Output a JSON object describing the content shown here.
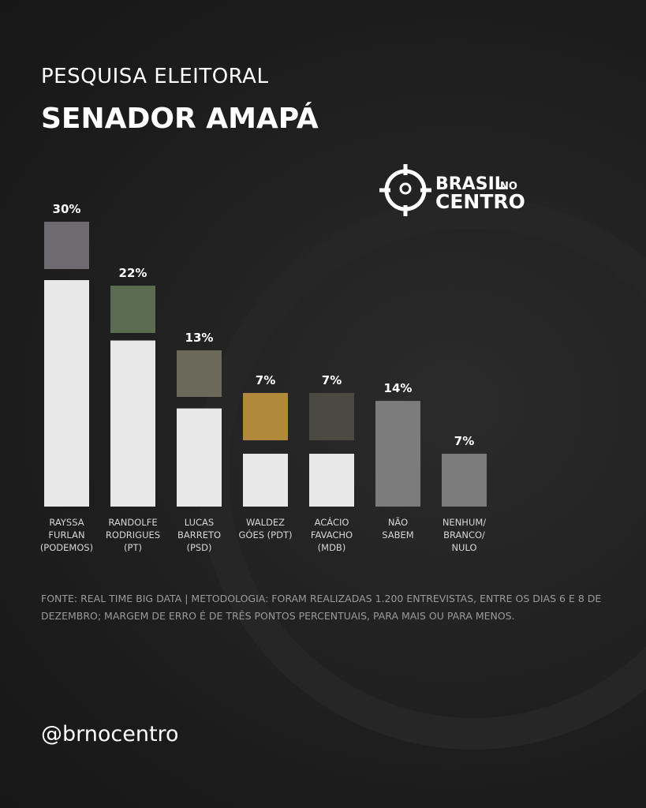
{
  "chart_data": {
    "type": "bar",
    "subtitle": "PESQUISA ELEITORAL",
    "title": "SENADOR AMAPÁ",
    "categories": [
      "RAYSSA\nFURLAN\n(PODEMOS)",
      "RANDOLFE\nRODRIGUES\n(PT)",
      "LUCAS\nBARRETO\n(PSD)",
      "WALDEZ\nGÓES (PDT)",
      "ACÁCIO\nFAVACHO\n(MDB)",
      "NÃO\nSABEM",
      "NENHUM/\nBRANCO/\nNULO"
    ],
    "values": [
      30,
      22,
      13,
      7,
      7,
      14,
      7
    ],
    "value_labels": [
      "30%",
      "22%",
      "13%",
      "7%",
      "7%",
      "14%",
      "7%"
    ],
    "colors": [
      "#e8e8e8",
      "#e8e8e8",
      "#e8e8e8",
      "#e8e8e8",
      "#e8e8e8",
      "#7c7c7c",
      "#7c7c7c"
    ],
    "source": "FONTE: REAL TIME BIG DATA | METODOLOGIA: FORAM REALIZADAS 1.200 ENTREVISTAS, ENTRE OS DIAS 6 E 8 DE DEZEMBRO; MARGEM DE ERRO É DE TRÊS PONTOS PERCENTUAIS, PARA MAIS OU PARA MENOS."
  },
  "brand": {
    "top": "BRASIL",
    "small": "NO",
    "bottom": "CENTRO"
  },
  "handle": "@brnocentro"
}
